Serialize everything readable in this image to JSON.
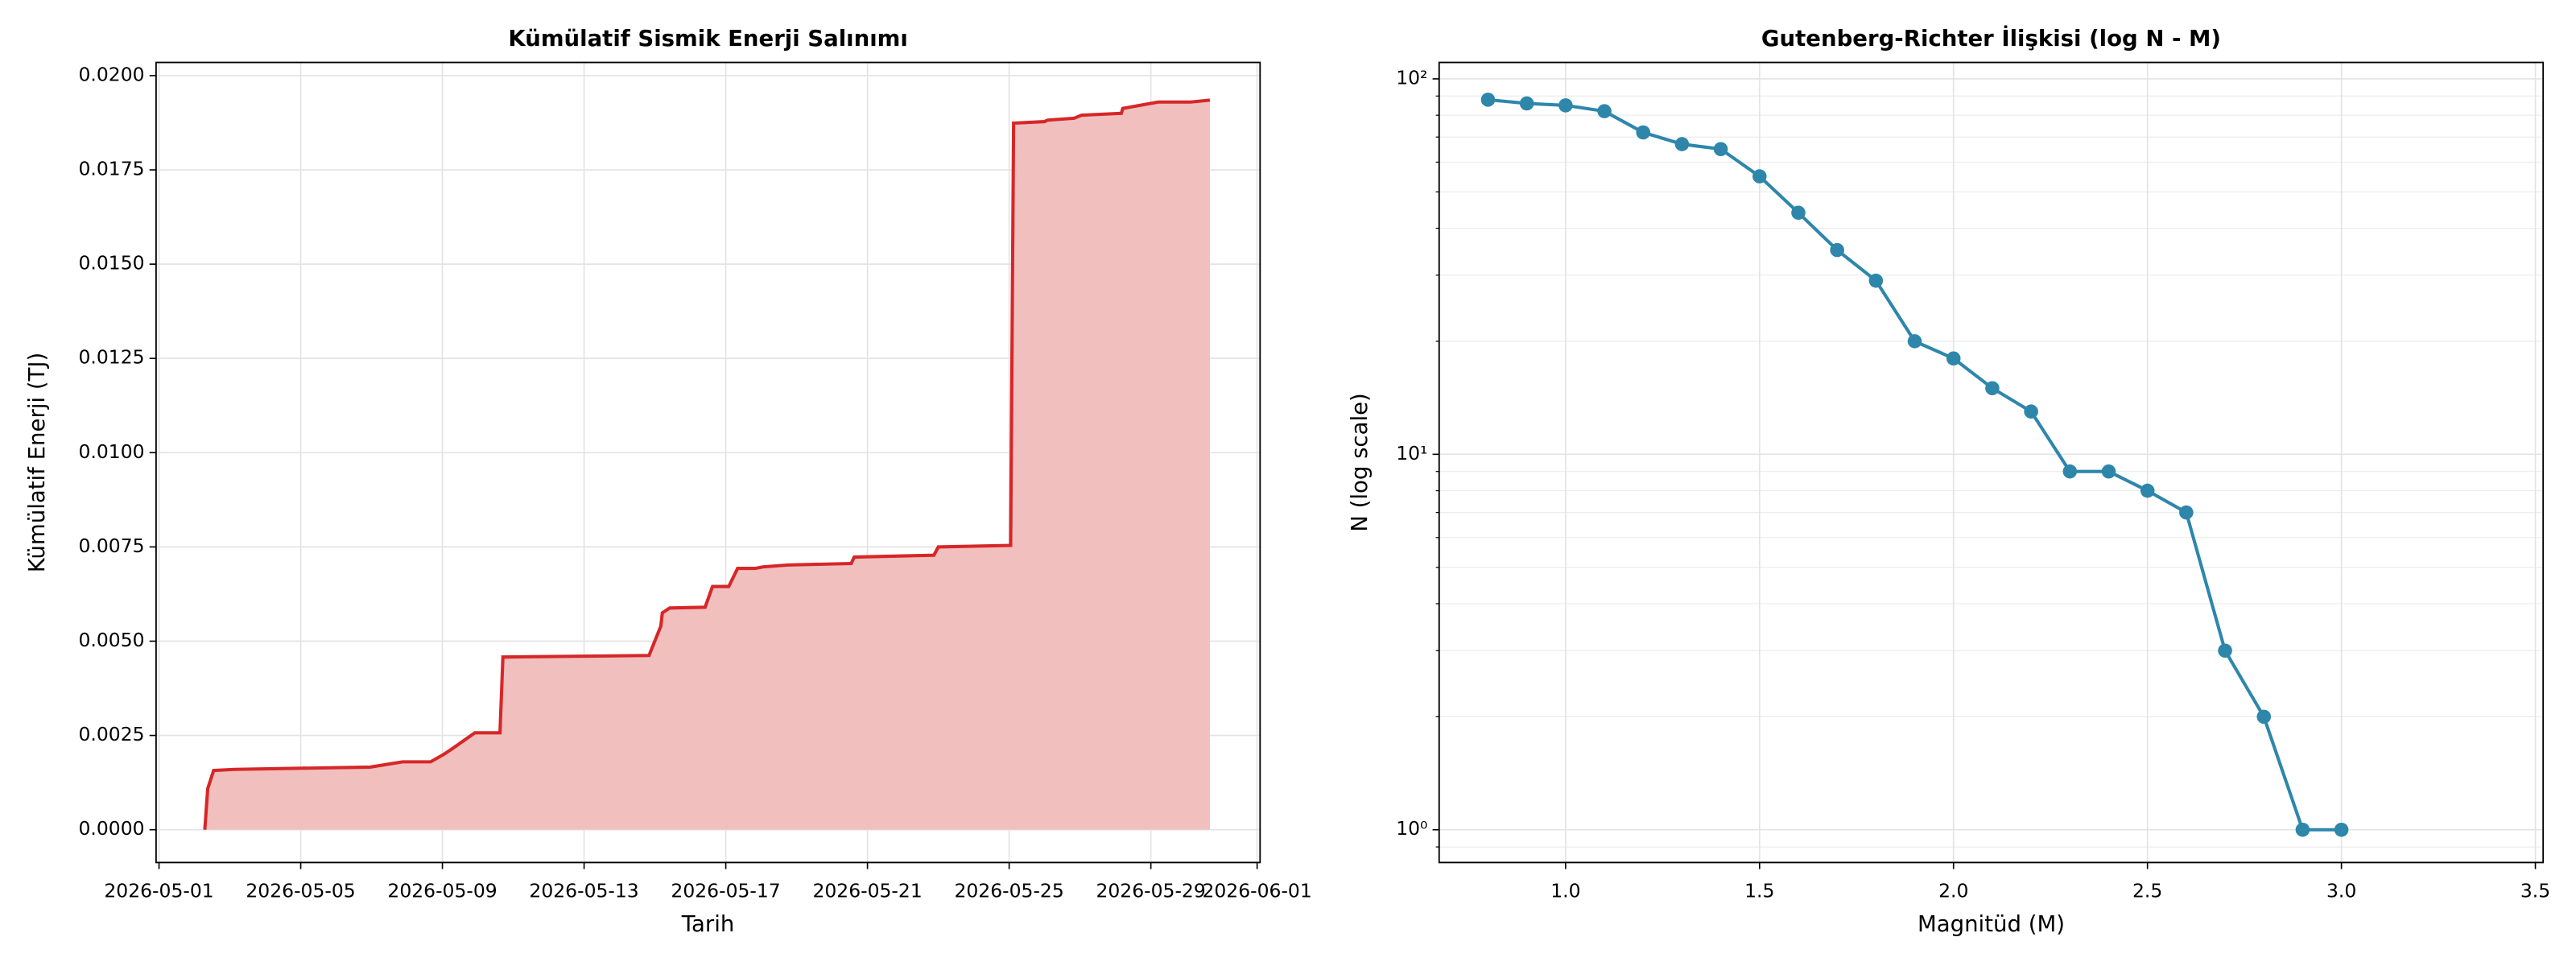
{
  "chart_data": [
    {
      "type": "area",
      "title": "Kümülatif Sismik Enerji Salınımı",
      "xlabel": "Tarih",
      "ylabel": "Kümülatif Enerji (TJ)",
      "x": [
        "2026-05-02T07:00",
        "2026-05-02T09:00",
        "2026-05-02T13:00",
        "2026-05-03T03:00",
        "2026-05-06T23:00",
        "2026-05-07T21:00",
        "2026-05-08T16:00",
        "2026-05-09T01:00",
        "2026-05-09T06:00",
        "2026-05-09T22:00",
        "2026-05-10T15:00",
        "2026-05-10T17:00",
        "2026-05-14T20:00",
        "2026-05-15T04:00",
        "2026-05-15T05:00",
        "2026-05-15T10:00",
        "2026-05-16T10:00",
        "2026-05-16T15:00",
        "2026-05-17T02:00",
        "2026-05-17T08:00",
        "2026-05-17T20:00",
        "2026-05-18T01:00",
        "2026-05-18T18:00",
        "2026-05-20T13:00",
        "2026-05-20T15:00",
        "2026-05-22T21:00",
        "2026-05-23T00:00",
        "2026-05-25T01:00",
        "2026-05-25T03:00",
        "2026-05-26T00:00",
        "2026-05-26T02:00",
        "2026-05-26T20:00",
        "2026-05-27T01:00",
        "2026-05-28T04:00",
        "2026-05-28T05:00",
        "2026-05-29T05:00",
        "2026-05-30T03:00",
        "2026-05-30T16:00"
      ],
      "values": [
        0,
        0.00109,
        0.00157,
        0.0016,
        0.00166,
        0.0018,
        0.0018,
        0.002,
        0.00213,
        0.00257,
        0.00257,
        0.00458,
        0.00462,
        0.0054,
        0.00575,
        0.00588,
        0.0059,
        0.00645,
        0.00645,
        0.00693,
        0.00693,
        0.00697,
        0.00702,
        0.00706,
        0.00723,
        0.00728,
        0.0075,
        0.00754,
        0.01874,
        0.01878,
        0.01882,
        0.01887,
        0.01895,
        0.019,
        0.01913,
        0.0193,
        0.0193,
        0.01935
      ],
      "color": "#d62728",
      "fill_color": "#f2bfbf",
      "xlim": [
        "2026-04-30T22:00",
        "2026-06-01T02:00"
      ],
      "xticks": [
        "2026-05-01",
        "2026-05-05",
        "2026-05-09",
        "2026-05-13",
        "2026-05-17",
        "2026-05-21",
        "2026-05-25",
        "2026-05-29",
        "2026-06-01"
      ],
      "ylim": [
        -0.00087,
        0.02035
      ],
      "yticks": [
        {
          "value": 0,
          "label": "0.0000"
        },
        {
          "value": 0.0025,
          "label": "0.0025"
        },
        {
          "value": 0.005,
          "label": "0.0050"
        },
        {
          "value": 0.0075,
          "label": "0.0075"
        },
        {
          "value": 0.01,
          "label": "0.0100"
        },
        {
          "value": 0.0125,
          "label": "0.0125"
        },
        {
          "value": 0.015,
          "label": "0.0150"
        },
        {
          "value": 0.0175,
          "label": "0.0175"
        },
        {
          "value": 0.02,
          "label": "0.0200"
        }
      ],
      "grid": true
    },
    {
      "type": "line",
      "title": "Gutenberg-Richter İlişkisi (log N - M)",
      "xlabel": "Magnitüd (M)",
      "ylabel": "N (log scale)",
      "x": [
        0.8,
        0.9,
        1.0,
        1.1,
        1.2,
        1.3,
        1.4,
        1.5,
        1.6,
        1.7,
        1.8,
        1.9,
        2.0,
        2.1,
        2.2,
        2.3,
        2.4,
        2.5,
        2.6,
        2.7,
        2.8,
        2.9,
        3.0
      ],
      "values": [
        88,
        86,
        85,
        82,
        72,
        67,
        65,
        55,
        44,
        35,
        29,
        20,
        18,
        15,
        13,
        9,
        9,
        8,
        7,
        3,
        2,
        1,
        1
      ],
      "color": "#2e86ab",
      "ylog": true,
      "xlim": [
        0.674,
        3.52
      ],
      "xticks": [
        {
          "value": 1,
          "label": "1.0"
        },
        {
          "value": 1.5,
          "label": "1.5"
        },
        {
          "value": 2,
          "label": "2.0"
        },
        {
          "value": 2.5,
          "label": "2.5"
        },
        {
          "value": 3,
          "label": "3.0"
        },
        {
          "value": 3.5,
          "label": "3.5"
        }
      ],
      "ylim": [
        0.818,
        110.6
      ],
      "yticks": [
        {
          "value": 1,
          "label": "10⁰"
        },
        {
          "value": 10,
          "label": "10¹"
        },
        {
          "value": 100,
          "label": "10²"
        }
      ],
      "yminorticks": [
        0.9,
        2,
        3,
        4,
        5,
        6,
        7,
        8,
        9,
        20,
        30,
        40,
        50,
        60,
        70,
        80,
        90
      ],
      "grid": true
    }
  ]
}
